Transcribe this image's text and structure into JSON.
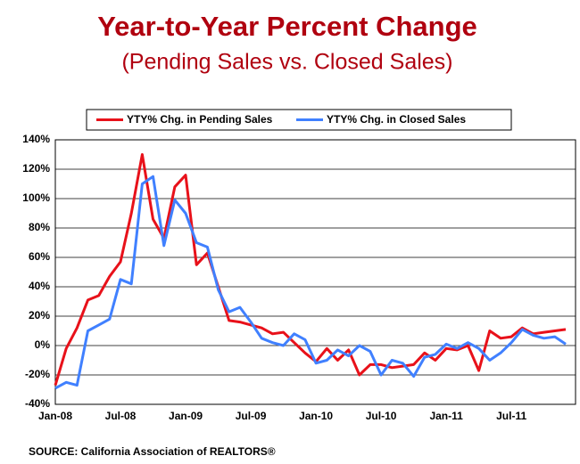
{
  "chart_data": {
    "type": "line",
    "title": "Year-to-Year Percent Change",
    "subtitle": "(Pending Sales vs. Closed Sales)",
    "source": "SOURCE: California Association of REALTORS®",
    "categories": [
      "Jan-08",
      null,
      null,
      null,
      null,
      null,
      "Jul-08",
      null,
      null,
      null,
      null,
      null,
      "Jan-09",
      null,
      null,
      null,
      null,
      null,
      "Jul-09",
      null,
      null,
      null,
      null,
      null,
      "Jan-10",
      null,
      null,
      null,
      null,
      null,
      "Jul-10",
      null,
      null,
      null,
      null,
      null,
      "Jan-11",
      null,
      null,
      null,
      null,
      null,
      "Jul-11",
      null,
      null,
      null,
      null,
      null
    ],
    "series": [
      {
        "name": "YTY% Chg. in Pending Sales",
        "color": "#e8111a",
        "values": [
          -27,
          -2,
          12,
          31,
          34,
          47,
          57,
          90,
          130,
          86,
          73,
          108,
          116,
          55,
          63,
          40,
          17,
          16,
          14,
          12,
          8,
          9,
          2,
          -5,
          -11,
          -2,
          -10,
          -3,
          -20,
          -13,
          -13,
          -15,
          -14,
          -13,
          -5,
          -10,
          -2,
          -3,
          0,
          -17,
          10,
          5,
          6,
          12,
          8,
          9,
          10,
          11
        ]
      },
      {
        "name": "YTY% Chg. in Closed Sales",
        "color": "#4080ff",
        "values": [
          -29,
          -25,
          -27,
          10,
          14,
          18,
          45,
          42,
          110,
          115,
          68,
          99,
          90,
          70,
          67,
          38,
          23,
          26,
          16,
          5,
          2,
          0,
          8,
          4,
          -12,
          -10,
          -3,
          -7,
          0,
          -4,
          -20,
          -10,
          -12,
          -21,
          -8,
          -6,
          1,
          -2,
          2,
          -2,
          -10,
          -5,
          2,
          11,
          7,
          5,
          6,
          1
        ]
      }
    ],
    "ylim": [
      -40,
      140
    ],
    "yticks": [
      {
        "value": -40,
        "label": "-40%"
      },
      {
        "value": -20,
        "label": "-20%"
      },
      {
        "value": 0,
        "label": "0%"
      },
      {
        "value": 20,
        "label": "20%"
      },
      {
        "value": 40,
        "label": "40%"
      },
      {
        "value": 60,
        "label": "60%"
      },
      {
        "value": 80,
        "label": "80%"
      },
      {
        "value": 100,
        "label": "100%"
      },
      {
        "value": 120,
        "label": "120%"
      },
      {
        "value": 140,
        "label": "140%"
      }
    ],
    "grid": true,
    "legend": "top"
  }
}
